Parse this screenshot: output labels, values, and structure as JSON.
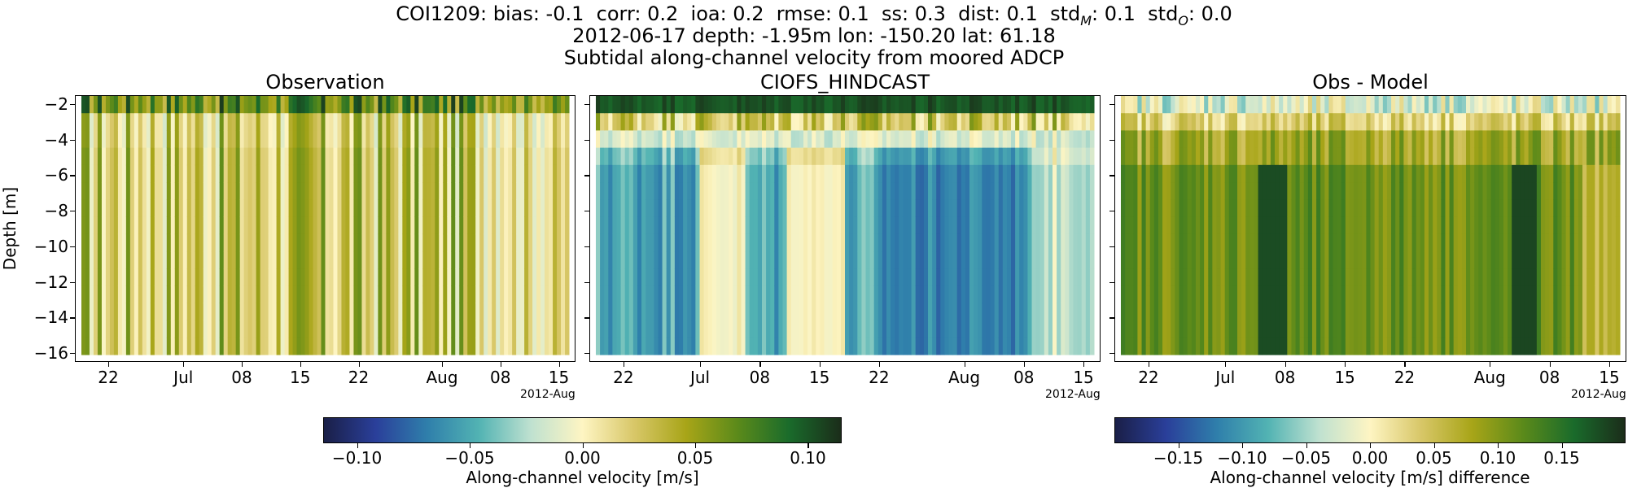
{
  "header": {
    "stats_line": "COI1209: bias: -0.1  corr: 0.2  ioa: 0.2  rmse: 0.1  ss: 0.3  dist: 0.1  std",
    "stats_std_m_sub": "M",
    "stats_std_m_val": ": 0.1  std",
    "stats_std_o_sub": "O",
    "stats_std_o_val": ": 0.0",
    "meta_line": "2012-06-17 depth: -1.95m lon: -150.20 lat: 61.18",
    "subtitle": "Subtidal along-channel velocity from moored ADCP"
  },
  "colors": {
    "cmap_stops": [
      "#1a1f47",
      "#2a3f9a",
      "#2f7fab",
      "#52b3b3",
      "#bfe1d0",
      "#fef5c3",
      "#d8c768",
      "#a8a518",
      "#5b8a1a",
      "#1a6b2b",
      "#1b2d1a"
    ]
  },
  "chart_data": [
    {
      "type": "heatmap",
      "title": "Observation",
      "ylabel": "Depth [m]",
      "xlabel": "",
      "x_ticks": [
        "22",
        "Jul",
        "08",
        "15",
        "22",
        "Aug",
        "08",
        "15"
      ],
      "x_tick_dates": [
        "2012-06-22",
        "2012-07-01",
        "2012-07-08",
        "2012-07-15",
        "2012-07-22",
        "2012-08-01",
        "2012-08-08",
        "2012-08-15"
      ],
      "x_offset_label": "2012-Aug",
      "xlim": [
        "2012-06-18",
        "2012-08-17"
      ],
      "y_ticks": [
        -2,
        -4,
        -6,
        -8,
        -10,
        -12,
        -14,
        -16
      ],
      "ylim": [
        -16.5,
        -1.5
      ],
      "colorbar": "velocity",
      "vlim": [
        -0.115,
        0.115
      ],
      "pattern": "obs"
    },
    {
      "type": "heatmap",
      "title": "CIOFS_HINDCAST",
      "xlabel": "",
      "x_ticks": [
        "22",
        "Jul",
        "08",
        "15",
        "22",
        "Aug",
        "08",
        "15"
      ],
      "x_tick_dates": [
        "2012-06-22",
        "2012-07-01",
        "2012-07-08",
        "2012-07-15",
        "2012-07-22",
        "2012-08-01",
        "2012-08-08",
        "2012-08-15"
      ],
      "x_offset_label": "2012-Aug",
      "xlim": [
        "2012-06-18",
        "2012-08-17"
      ],
      "y_ticks": [
        -2,
        -4,
        -6,
        -8,
        -10,
        -12,
        -14,
        -16
      ],
      "ylim": [
        -16.5,
        -1.5
      ],
      "colorbar": "velocity",
      "vlim": [
        -0.115,
        0.115
      ],
      "pattern": "model"
    },
    {
      "type": "heatmap",
      "title": "Obs - Model",
      "xlabel": "",
      "x_ticks": [
        "22",
        "Jul",
        "08",
        "15",
        "22",
        "Aug",
        "08",
        "15"
      ],
      "x_tick_dates": [
        "2012-06-22",
        "2012-07-01",
        "2012-07-08",
        "2012-07-15",
        "2012-07-22",
        "2012-08-01",
        "2012-08-08",
        "2012-08-15"
      ],
      "x_offset_label": "2012-Aug",
      "xlim": [
        "2012-06-18",
        "2012-08-17"
      ],
      "y_ticks": [
        -2,
        -4,
        -6,
        -8,
        -10,
        -12,
        -14,
        -16
      ],
      "ylim": [
        -16.5,
        -1.5
      ],
      "colorbar": "difference",
      "vlim": [
        -0.2,
        0.2
      ],
      "pattern": "diff"
    }
  ],
  "colorbars": {
    "velocity": {
      "label": "Along-channel velocity [m/s]",
      "ticks": [
        "−0.10",
        "−0.05",
        "0.00",
        "0.05",
        "0.10"
      ],
      "tick_values": [
        -0.1,
        -0.05,
        0.0,
        0.05,
        0.1
      ],
      "vlim": [
        -0.115,
        0.115
      ]
    },
    "difference": {
      "label": "Along-channel velocity [m/s] difference",
      "ticks": [
        "−0.15",
        "−0.10",
        "−0.05",
        "0.00",
        "0.05",
        "0.10",
        "0.15"
      ],
      "tick_values": [
        -0.15,
        -0.1,
        -0.05,
        0.0,
        0.05,
        0.1,
        0.15
      ],
      "vlim": [
        -0.2,
        0.2
      ]
    }
  }
}
